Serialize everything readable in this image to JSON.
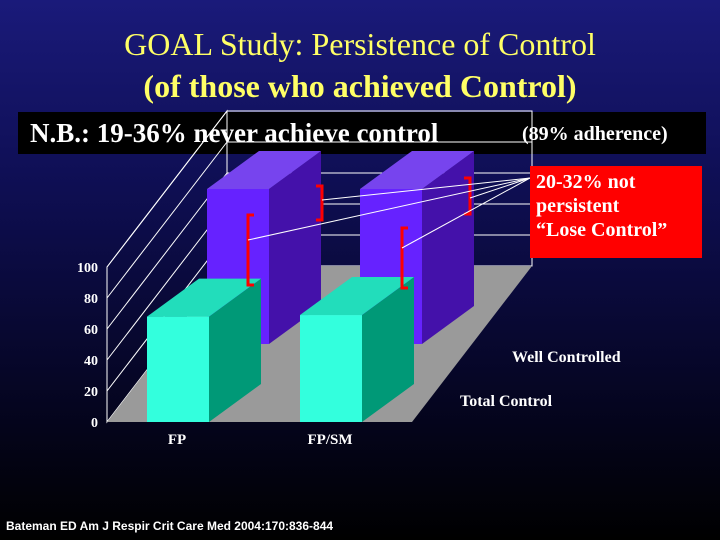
{
  "slide": {
    "title_line1": "GOAL Study: Persistence of Control",
    "title_line2": "(of those who achieved Control)",
    "nb_main": "N.B.: 19-36% never achieve control",
    "nb_sub": "(89% adherence)",
    "callout_line1": "20-32% not",
    "callout_line2": "persistent",
    "callout_line3": "“Lose Control”",
    "citation": "Bateman ED  Am J Respir Crit Care Med 2004:170:836-844"
  },
  "colors": {
    "total_control_front": "#33ffdd",
    "total_control_side": "#009977",
    "total_control_top": "#22ddbb",
    "well_controlled_front": "#6622ff",
    "well_controlled_side": "#4411aa",
    "well_controlled_top": "#7744ee",
    "floor": "#9a9a9a",
    "bracket": "#ff0000",
    "callout_bg": "#ff0000"
  },
  "chart_data": {
    "type": "bar",
    "categories": [
      "FP",
      "FP/SM"
    ],
    "series": [
      {
        "name": "Total Control",
        "values": [
          68,
          69
        ]
      },
      {
        "name": "Well Controlled",
        "values": [
          100,
          100
        ]
      }
    ],
    "yticks": [
      "0",
      "20",
      "40",
      "60",
      "80",
      "100"
    ],
    "ylim": [
      0,
      100
    ]
  }
}
